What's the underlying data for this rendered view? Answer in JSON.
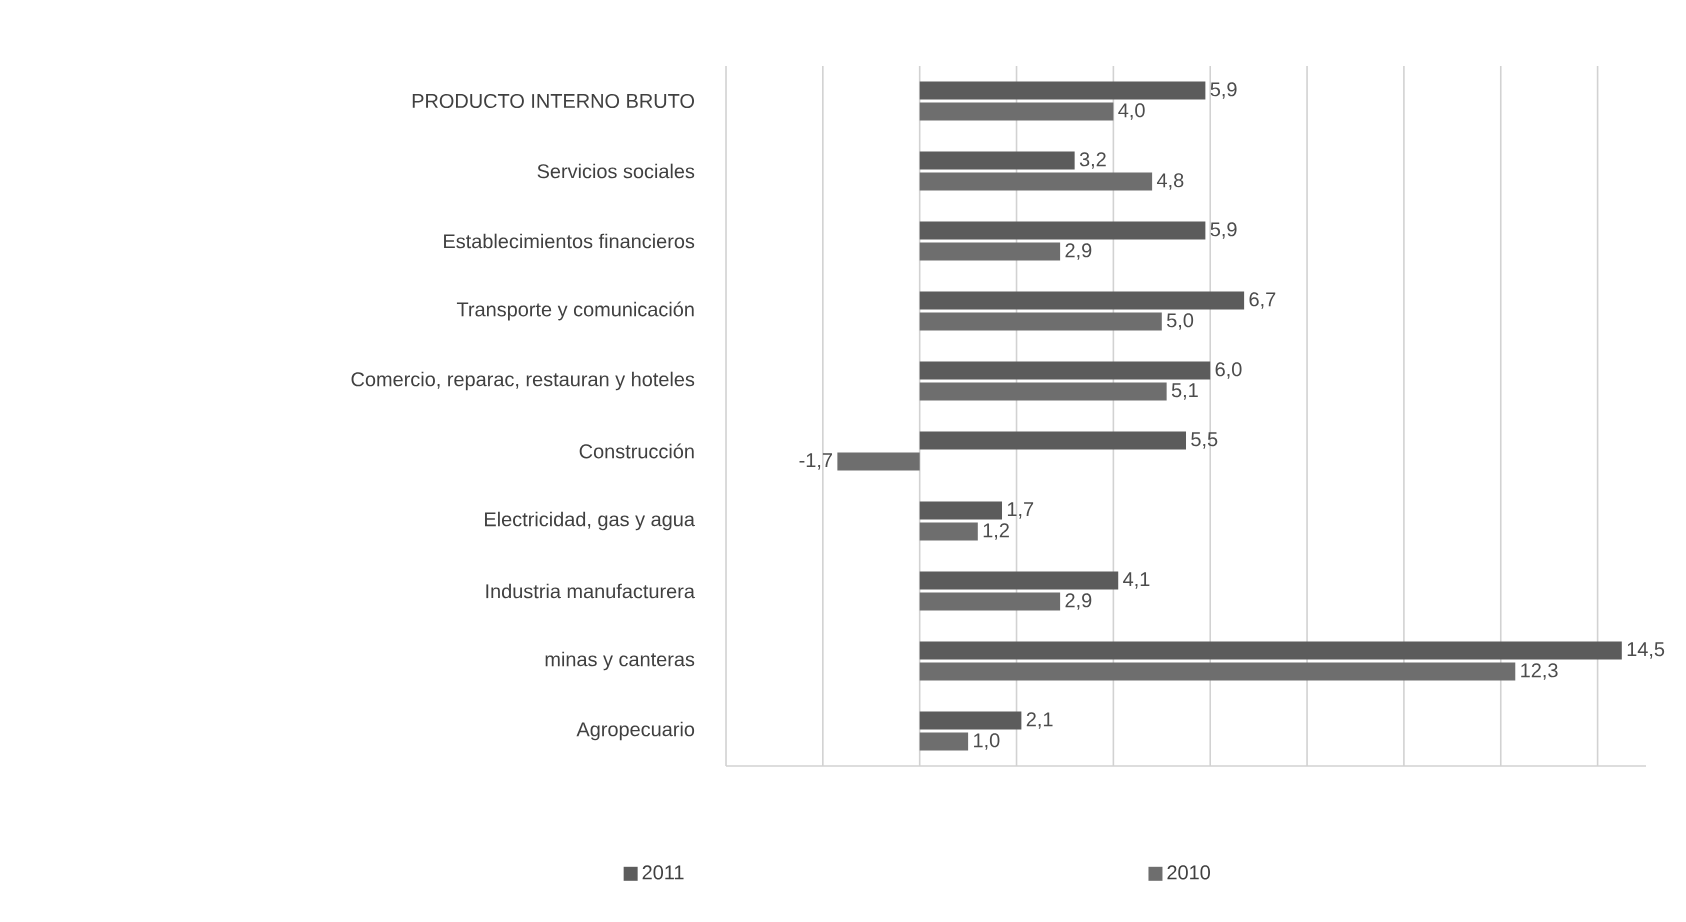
{
  "chart_data": {
    "type": "bar",
    "orientation": "horizontal",
    "categories": [
      "PRODUCTO INTERNO BRUTO",
      "Servicios sociales",
      "Establecimientos financieros",
      "Transporte y comunicación",
      "Comercio, reparac, restauran y hoteles",
      "Construcción",
      "Electricidad, gas y agua",
      "Industria manufacturera",
      "minas y canteras",
      "Agropecuario"
    ],
    "series": [
      {
        "name": "2011",
        "color": "#5c5c5c",
        "values": [
          5.9,
          3.2,
          5.9,
          6.7,
          6.0,
          5.5,
          1.7,
          4.1,
          14.5,
          2.1
        ],
        "value_labels": [
          "5,9",
          "3,2",
          "5,9",
          "6,7",
          "6,0",
          "5,5",
          "1,7",
          "4,1",
          "14,5",
          "2,1"
        ]
      },
      {
        "name": "2010",
        "color": "#6e6e6e",
        "values": [
          4.0,
          4.8,
          2.9,
          5.0,
          5.1,
          -1.7,
          1.2,
          2.9,
          12.3,
          1.0
        ],
        "value_labels": [
          "4,0",
          "4,8",
          "2,9",
          "5,0",
          "5,1",
          "-1,7",
          "1,2",
          "2,9",
          "12,3",
          "1,0"
        ]
      }
    ],
    "xlim": [
      -4,
      15
    ],
    "xticks": [
      {
        "value": -4,
        "label": null
      },
      {
        "value": -2,
        "label": null
      },
      {
        "value": 0,
        "label": null
      },
      {
        "value": 2,
        "label": null
      },
      {
        "value": 4,
        "label": null
      },
      {
        "value": 6,
        "label": null
      },
      {
        "value": 8,
        "label": null
      },
      {
        "value": 10,
        "label": null
      },
      {
        "value": 12,
        "label": null
      },
      {
        "value": 14,
        "label": null
      }
    ],
    "grid": "x",
    "legend": "bottom"
  }
}
